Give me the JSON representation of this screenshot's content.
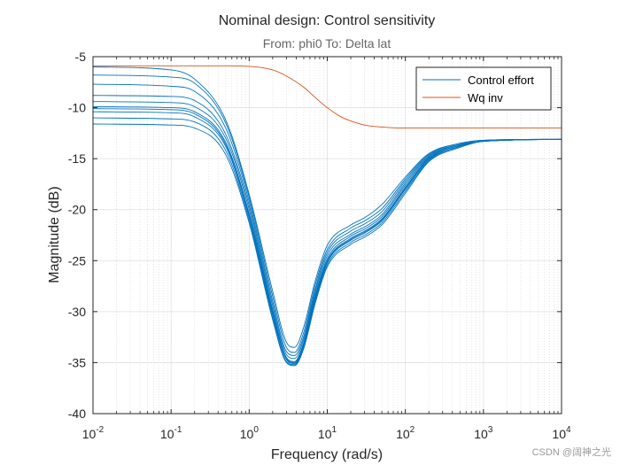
{
  "chart_data": {
    "type": "line",
    "title": "Nominal design: Control sensitivity",
    "subtitle": "From: phi0  To: Delta lat",
    "xlabel": "Frequency  (rad/s)",
    "ylabel": "Magnitude (dB)",
    "xscale": "log",
    "xlim": [
      0.01,
      10000
    ],
    "ylim": [
      -40,
      -5
    ],
    "x_ticks": [
      0.01,
      0.1,
      1,
      10,
      100,
      1000,
      10000
    ],
    "x_tick_labels": [
      {
        "base": "10",
        "exp": "-2"
      },
      {
        "base": "10",
        "exp": "-1"
      },
      {
        "base": "10",
        "exp": "0"
      },
      {
        "base": "10",
        "exp": "1"
      },
      {
        "base": "10",
        "exp": "2"
      },
      {
        "base": "10",
        "exp": "3"
      },
      {
        "base": "10",
        "exp": "4"
      }
    ],
    "y_ticks": [
      -40,
      -35,
      -30,
      -25,
      -20,
      -15,
      -10,
      -5
    ],
    "grid": true,
    "minor_grid": true,
    "legend": {
      "placement": "top-right",
      "entries": [
        "Control effort",
        "Wq inv"
      ]
    },
    "colors": {
      "control_effort": "#0072BD",
      "wq_inv": "#D95319"
    },
    "series": [
      {
        "name": "Wq inv",
        "color": "#D95319",
        "x": [
          0.01,
          0.1,
          0.5,
          1,
          2,
          3,
          5,
          7,
          10,
          15,
          20,
          30,
          50,
          100,
          1000,
          10000
        ],
        "y": [
          -5.9,
          -5.9,
          -5.9,
          -5.95,
          -6.3,
          -6.9,
          -8.0,
          -9.0,
          -10.0,
          -10.9,
          -11.3,
          -11.7,
          -11.9,
          -12.0,
          -12.0,
          -12.0
        ]
      },
      {
        "name": "Control effort",
        "color": "#0072BD",
        "x": [
          0.01,
          0.1,
          0.2,
          0.5,
          1,
          2,
          3,
          3.8,
          5,
          7,
          10,
          20,
          30,
          50,
          100,
          200,
          500,
          1000,
          10000
        ],
        "y": [
          -6.0,
          -6.3,
          -7.2,
          -11.2,
          -18.5,
          -28.0,
          -33.0,
          -33.5,
          -31.5,
          -27.0,
          -23.5,
          -21.5,
          -20.8,
          -19.5,
          -16.8,
          -14.5,
          -13.5,
          -13.2,
          -13.1
        ]
      },
      {
        "x": [
          0.01,
          0.1,
          0.2,
          0.5,
          1,
          2,
          3,
          3.8,
          5,
          7,
          10,
          20,
          30,
          50,
          100,
          200,
          500,
          1000,
          10000
        ],
        "y": [
          -6.8,
          -7.0,
          -7.6,
          -11.5,
          -18.8,
          -28.5,
          -33.5,
          -34.0,
          -32.0,
          -27.4,
          -23.9,
          -21.8,
          -21.1,
          -19.9,
          -17.0,
          -14.6,
          -13.5,
          -13.2,
          -13.1
        ]
      },
      {
        "x": [
          0.01,
          0.1,
          0.2,
          0.5,
          1,
          2,
          3,
          3.8,
          5,
          7,
          10,
          20,
          30,
          50,
          100,
          200,
          500,
          1000,
          10000
        ],
        "y": [
          -7.7,
          -7.9,
          -8.4,
          -12.0,
          -19.2,
          -29.0,
          -33.9,
          -34.3,
          -32.4,
          -27.8,
          -24.2,
          -22.1,
          -21.4,
          -20.2,
          -17.2,
          -14.7,
          -13.6,
          -13.2,
          -13.1
        ]
      },
      {
        "x": [
          0.01,
          0.1,
          0.2,
          0.5,
          1,
          2,
          3,
          3.8,
          5,
          7,
          10,
          20,
          30,
          50,
          100,
          200,
          500,
          1000,
          10000
        ],
        "y": [
          -8.8,
          -8.9,
          -9.3,
          -12.6,
          -19.6,
          -29.4,
          -34.2,
          -34.6,
          -32.7,
          -28.1,
          -24.5,
          -22.4,
          -21.7,
          -20.5,
          -17.4,
          -14.8,
          -13.6,
          -13.2,
          -13.1
        ]
      },
      {
        "x": [
          0.01,
          0.1,
          0.2,
          0.5,
          1,
          2,
          3,
          3.8,
          5,
          7,
          10,
          20,
          30,
          50,
          100,
          200,
          500,
          1000,
          10000
        ],
        "y": [
          -9.4,
          -9.5,
          -9.9,
          -13.0,
          -20.0,
          -29.8,
          -34.5,
          -34.9,
          -33.0,
          -28.4,
          -24.8,
          -22.6,
          -21.9,
          -20.7,
          -17.6,
          -14.9,
          -13.7,
          -13.3,
          -13.1
        ]
      },
      {
        "x": [
          0.01,
          0.1,
          0.2,
          0.5,
          1,
          2,
          3,
          3.8,
          5,
          7,
          10,
          20,
          30,
          50,
          100,
          200,
          500,
          1000,
          10000
        ],
        "y": [
          -9.9,
          -10.0,
          -10.4,
          -13.4,
          -20.4,
          -30.0,
          -34.6,
          -35.0,
          -33.2,
          -28.6,
          -25.0,
          -22.8,
          -22.1,
          -20.9,
          -17.8,
          -15.0,
          -13.7,
          -13.3,
          -13.1
        ]
      },
      {
        "x": [
          0.01,
          0.1,
          0.2,
          0.5,
          1,
          2,
          3,
          3.8,
          5,
          7,
          10,
          20,
          30,
          50,
          100,
          200,
          500,
          1000,
          10000
        ],
        "y": [
          -10.4,
          -10.5,
          -10.9,
          -13.8,
          -20.7,
          -30.3,
          -34.7,
          -35.1,
          -33.3,
          -28.8,
          -25.2,
          -23.0,
          -22.3,
          -21.1,
          -18.0,
          -15.1,
          -13.8,
          -13.3,
          -13.1
        ]
      },
      {
        "x": [
          0.01,
          0.1,
          0.2,
          0.5,
          1,
          2,
          3,
          3.8,
          5,
          7,
          10,
          20,
          30,
          50,
          100,
          200,
          500,
          1000,
          10000
        ],
        "y": [
          -11.0,
          -11.1,
          -11.4,
          -14.2,
          -21.0,
          -30.6,
          -34.9,
          -35.2,
          -33.5,
          -29.0,
          -25.4,
          -23.2,
          -22.5,
          -21.3,
          -18.2,
          -15.2,
          -13.8,
          -13.3,
          -13.1
        ]
      },
      {
        "x": [
          0.01,
          0.1,
          0.2,
          0.5,
          1,
          2,
          3,
          3.8,
          5,
          7,
          10,
          20,
          30,
          50,
          100,
          200,
          500,
          1000,
          10000
        ],
        "y": [
          -11.6,
          -11.7,
          -12.0,
          -14.6,
          -21.3,
          -30.8,
          -35.0,
          -35.3,
          -33.6,
          -29.2,
          -25.6,
          -23.4,
          -22.7,
          -21.5,
          -18.4,
          -15.3,
          -13.9,
          -13.3,
          -13.1
        ]
      },
      {
        "x": [
          0.01,
          0.1,
          0.2,
          0.5,
          1,
          2,
          3,
          3.8,
          5,
          7,
          10,
          20,
          30,
          50,
          100,
          200,
          500,
          1000,
          10000
        ],
        "y": [
          -10.1,
          -10.2,
          -10.6,
          -13.6,
          -20.5,
          -30.1,
          -34.6,
          -35.0,
          -33.2,
          -28.7,
          -25.1,
          -22.9,
          -22.2,
          -21.0,
          -17.9,
          -15.0,
          -13.7,
          -13.3,
          -13.1
        ]
      }
    ]
  },
  "watermark": "CSDN @阔神之光"
}
